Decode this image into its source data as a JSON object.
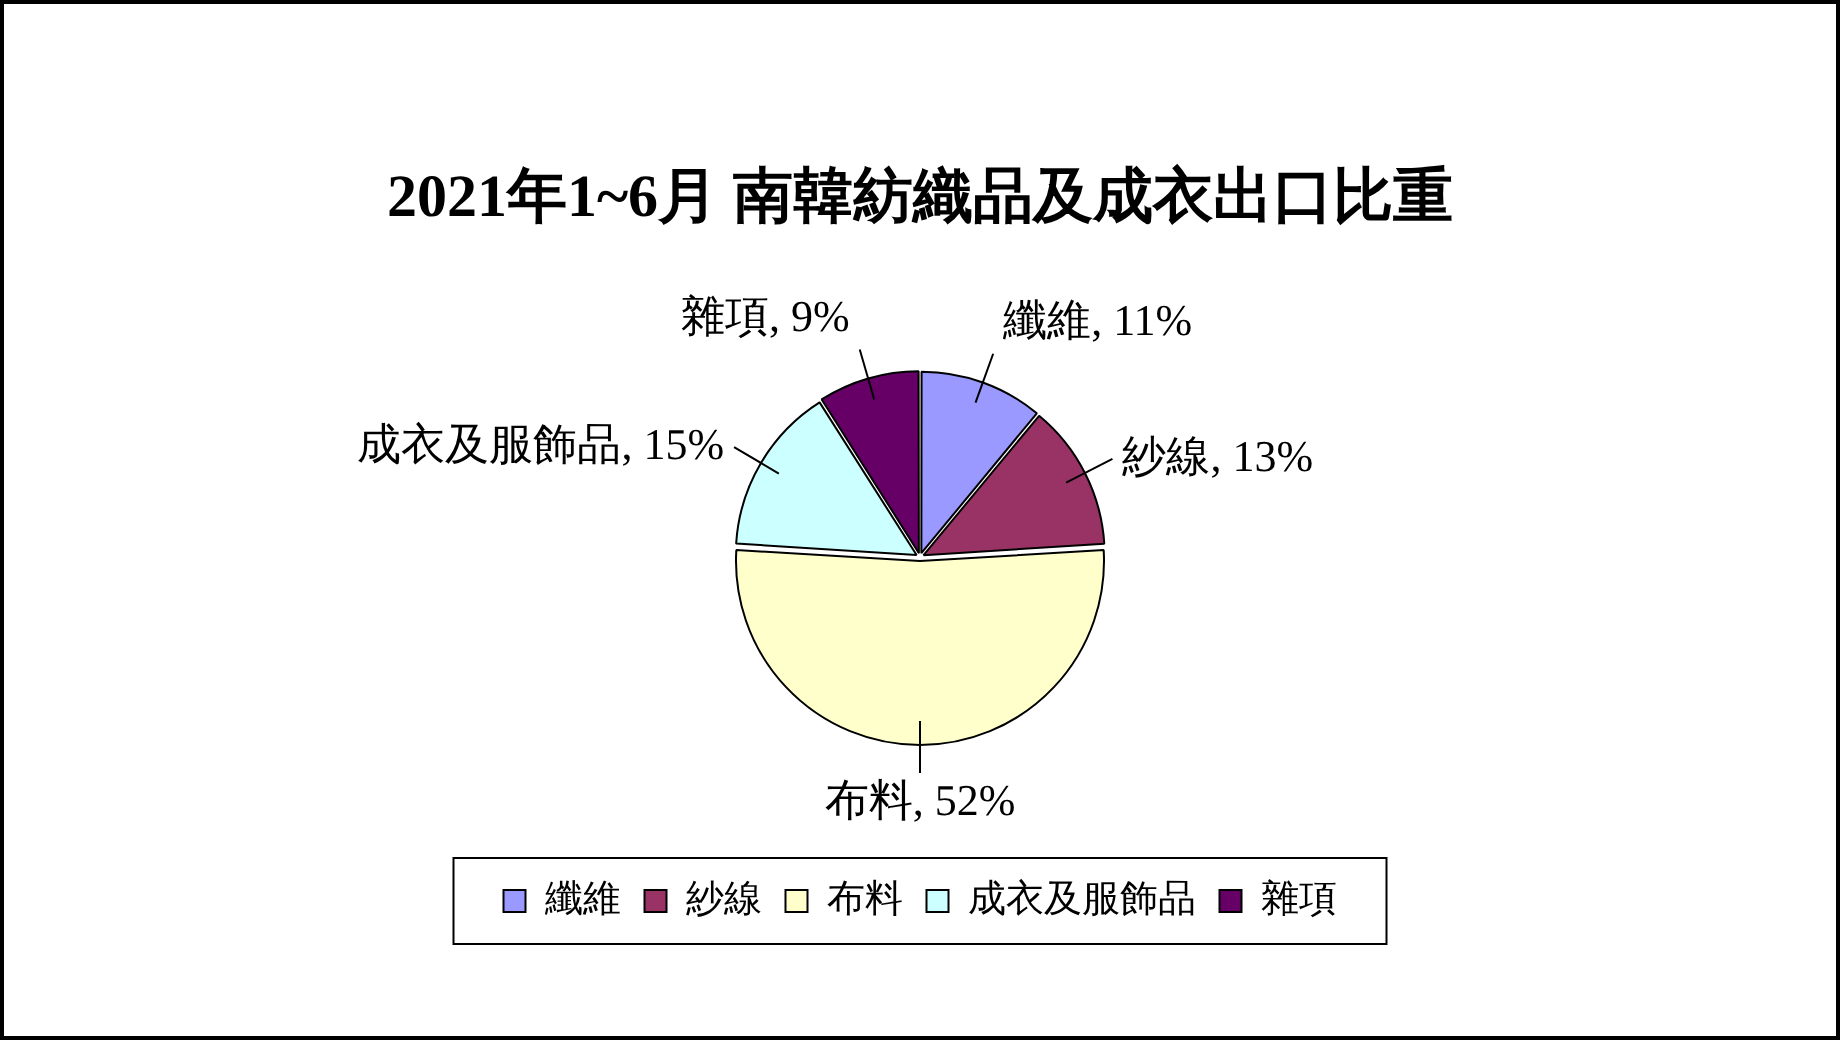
{
  "chart_data": {
    "type": "pie",
    "title": "2021年1~6月 南韓紡織品及成衣出口比重",
    "categories": [
      "纖維",
      "紗線",
      "布料",
      "成衣及服飾品",
      "雜項"
    ],
    "values": [
      11,
      13,
      52,
      15,
      9
    ],
    "colors": [
      "#9999ff",
      "#993366",
      "#ffffcc",
      "#ccffff",
      "#660066"
    ],
    "value_labels": [
      "纖維, 11%",
      "紗線, 13%",
      "布料, 52%",
      "成衣及服飾品, 15%",
      "雜項, 9%"
    ],
    "legend": "bottom"
  }
}
